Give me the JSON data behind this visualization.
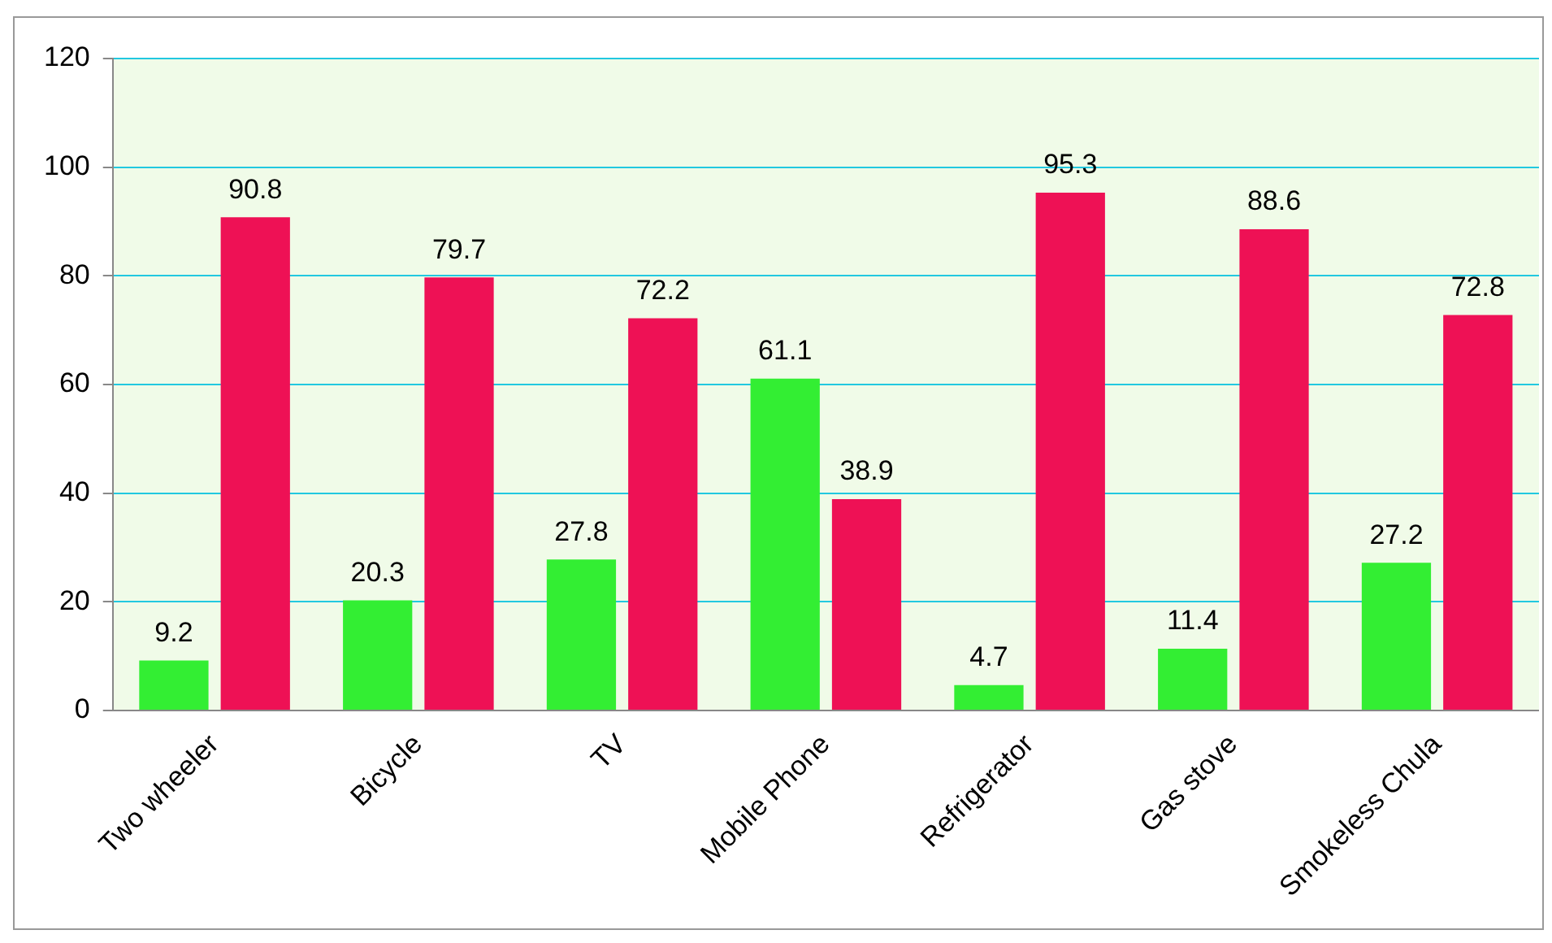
{
  "chart_data": {
    "type": "bar",
    "categories": [
      "Two wheeler",
      "Bicycle",
      "TV",
      "Mobile Phone",
      "Refrigerator",
      "Gas stove",
      "Smokeless Chula"
    ],
    "series": [
      {
        "color": "#33ee33",
        "values": [
          9.2,
          20.3,
          27.8,
          61.1,
          4.7,
          11.4,
          27.2
        ]
      },
      {
        "color": "#ee1155",
        "values": [
          90.8,
          79.7,
          72.2,
          38.9,
          95.3,
          88.6,
          72.8
        ]
      }
    ],
    "ylim": [
      0,
      120
    ],
    "yticks": [
      0,
      20,
      40,
      60,
      80,
      100,
      120
    ],
    "grid": "y",
    "data_labels": true
  }
}
